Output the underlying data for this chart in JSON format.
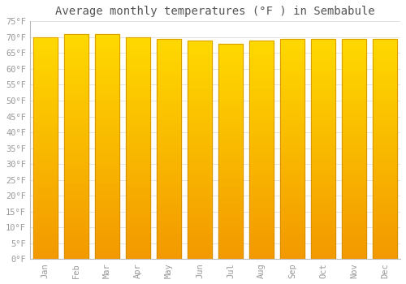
{
  "title": "Average monthly temperatures (°F ) in Sembabule",
  "months": [
    "Jan",
    "Feb",
    "Mar",
    "Apr",
    "May",
    "Jun",
    "Jul",
    "Aug",
    "Sep",
    "Oct",
    "Nov",
    "Dec"
  ],
  "values": [
    70.0,
    71.0,
    71.0,
    70.0,
    69.5,
    69.0,
    68.0,
    69.0,
    69.5,
    69.5,
    69.5,
    69.5
  ],
  "bar_color_main": "#FFA500",
  "bar_color_light": "#FFD700",
  "background_color": "#FFFFFF",
  "grid_color": "#DDDDDD",
  "ylim": [
    0,
    75
  ],
  "yticks": [
    0,
    5,
    10,
    15,
    20,
    25,
    30,
    35,
    40,
    45,
    50,
    55,
    60,
    65,
    70,
    75
  ],
  "title_fontsize": 10,
  "tick_fontsize": 7.5,
  "tick_color": "#999999",
  "title_color": "#555555"
}
